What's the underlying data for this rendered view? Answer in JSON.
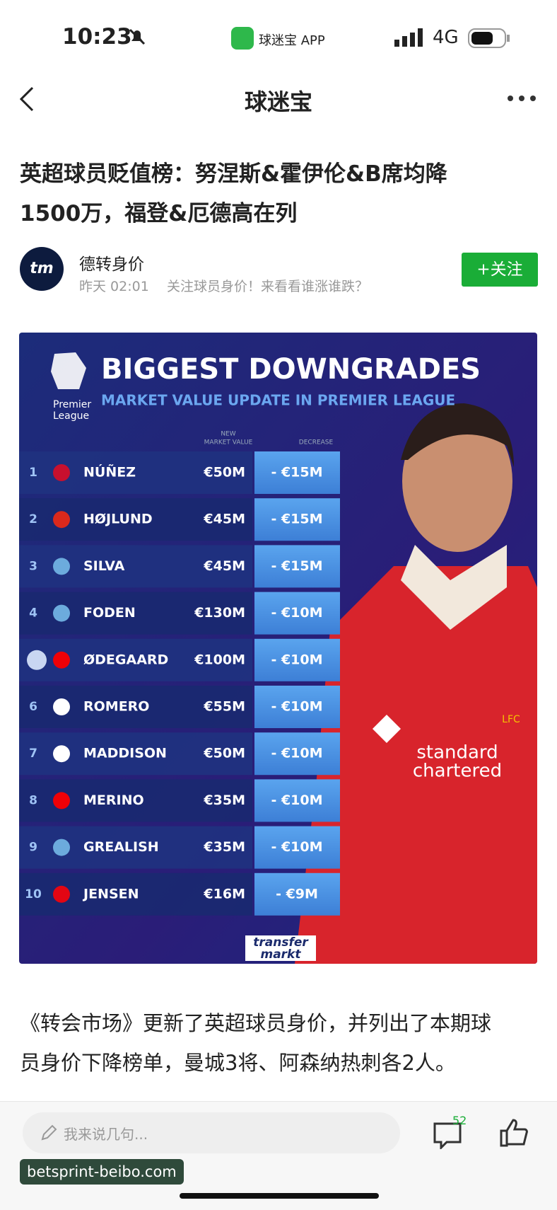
{
  "status_bar": {
    "time": "10:23",
    "app": "球迷宝 APP",
    "network": "4G"
  },
  "nav": {
    "title": "球迷宝"
  },
  "article": {
    "title": [
      "英超球员贬值榜：努涅斯&霍伊伦&B席均降",
      "1500万，福登&厄德高在列"
    ],
    "author": "德转身价",
    "avatar": "tm",
    "meta_time": "昨天 02:01",
    "meta_text": "关注球员身价！来看看谁涨谁跌？",
    "follow": "+关注",
    "body": [
      "《转会市场》更新了英超球员身价，并列出了本期球",
      "员身价下降榜单，曼城3将、阿森纳热刺各2人。"
    ]
  },
  "infographic": {
    "title": "BIGGEST DOWNGRADES",
    "subtitle": "MARKET VALUE UPDATE IN PREMIER LEAGUE",
    "league": [
      "Premier",
      "League"
    ],
    "value_header": [
      "NEW",
      "MARKET VALUE"
    ],
    "decrease_header": "DECREASE",
    "rows": [
      {
        "rank": "1",
        "name": "NÚÑEZ",
        "value": "€50M",
        "decrease": "- €15M",
        "club": "liv"
      },
      {
        "rank": "2",
        "name": "HØJLUND",
        "value": "€45M",
        "decrease": "- €15M",
        "club": "mun"
      },
      {
        "rank": "3",
        "name": "SILVA",
        "value": "€45M",
        "decrease": "- €15M",
        "club": "mci"
      },
      {
        "rank": "4",
        "name": "FODEN",
        "value": "€130M",
        "decrease": "- €10M",
        "club": "mci"
      },
      {
        "name": "ØDEGAARD",
        "value": "€100M",
        "decrease": "- €10M",
        "club": "ars"
      },
      {
        "rank": "6",
        "name": "ROMERO",
        "value": "€55M",
        "decrease": "- €10M",
        "club": "tot"
      },
      {
        "rank": "7",
        "name": "MADDISON",
        "value": "€50M",
        "decrease": "- €10M",
        "club": "tot"
      },
      {
        "rank": "8",
        "name": "MERINO",
        "value": "€35M",
        "decrease": "- €10M",
        "club": "ars"
      },
      {
        "rank": "9",
        "name": "GREALISH",
        "value": "€35M",
        "decrease": "- €10M",
        "club": "mci"
      },
      {
        "rank": "10",
        "name": "JENSEN",
        "value": "€16M",
        "decrease": "- €9M",
        "club": "bre"
      }
    ],
    "sponsor": [
      "standard",
      "chartered"
    ],
    "crest": "LFC",
    "brand": [
      "transfer",
      "markt"
    ]
  },
  "bottom_bar": {
    "placeholder": "我来说几句...",
    "comments": "52"
  },
  "watermark": "betsprint-beibo.com"
}
